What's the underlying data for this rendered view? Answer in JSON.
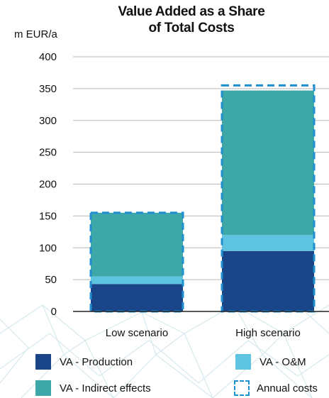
{
  "chart_data": {
    "type": "bar",
    "stacked": true,
    "title": "Value Added as a Share of Total Costs",
    "title_lines": [
      "Value Added as a Share",
      "of Total Costs"
    ],
    "ylabel": "m EUR/a",
    "ylim": [
      0,
      400
    ],
    "yticks": [
      "0",
      "50",
      "100",
      "150",
      "200",
      "250",
      "300",
      "350",
      "400"
    ],
    "categories": [
      "Low scenario",
      "High scenario"
    ],
    "grid": true,
    "legend_position": "bottom",
    "series": [
      {
        "name": "VA - Production",
        "values": [
          43,
          95
        ],
        "color": "#1b4589"
      },
      {
        "name": "VA - O&M",
        "values": [
          12,
          25
        ],
        "color": "#5ec4df"
      },
      {
        "name": "VA - Indirect effects",
        "values": [
          100,
          227
        ],
        "color": "#3ea8a9"
      }
    ],
    "annual_costs": {
      "name": "Annual costs",
      "values": [
        155,
        355
      ],
      "color": "#1f8fd0"
    }
  }
}
